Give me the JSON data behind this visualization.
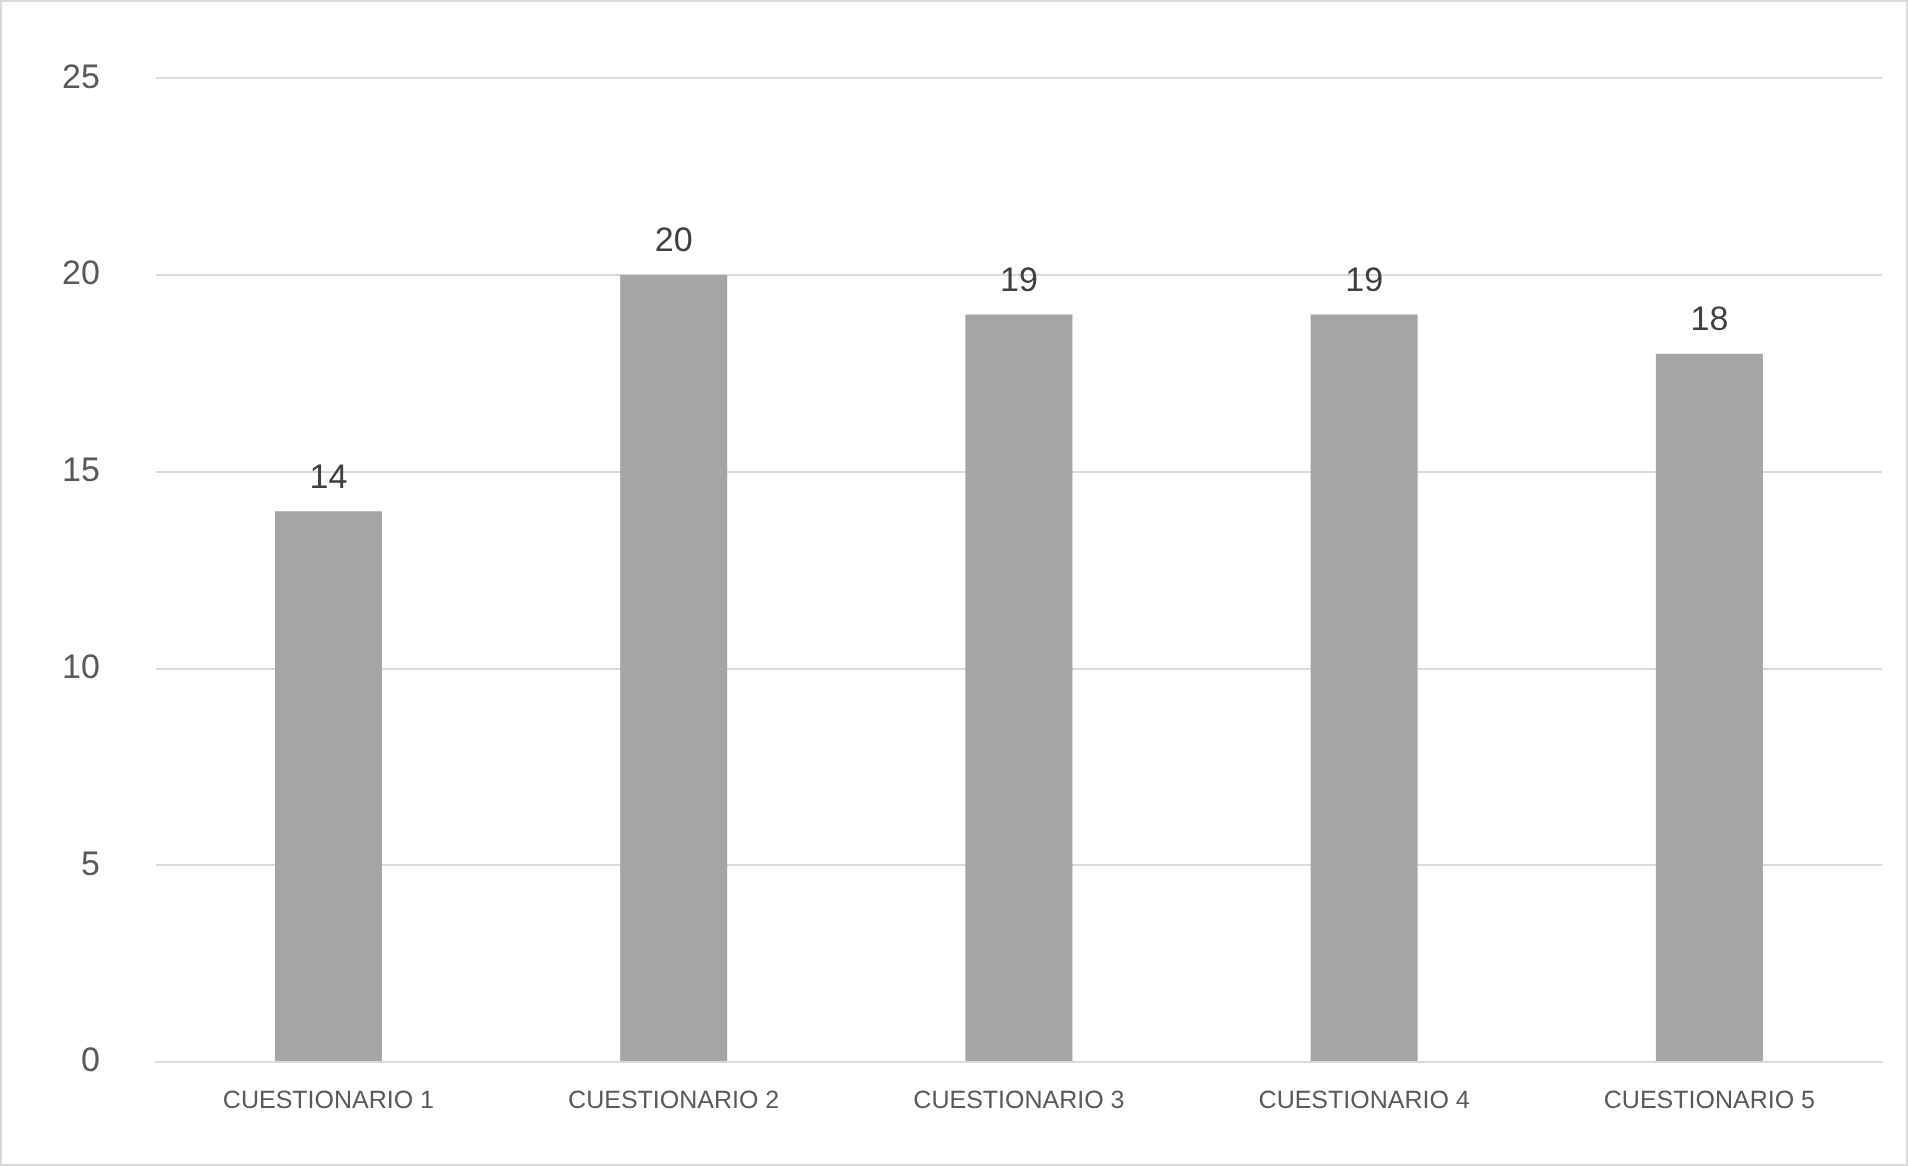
{
  "chart_data": {
    "type": "bar",
    "categories": [
      "CUESTIONARIO 1",
      "CUESTIONARIO 2",
      "CUESTIONARIO 3",
      "CUESTIONARIO 4",
      "CUESTIONARIO 5"
    ],
    "values": [
      14,
      20,
      19,
      19,
      18
    ],
    "color": "#a5a5a5",
    "ylim": [
      0,
      25
    ],
    "yticks": [
      0,
      5,
      10,
      15,
      20,
      25
    ],
    "grid": "y",
    "data_labels": true
  }
}
